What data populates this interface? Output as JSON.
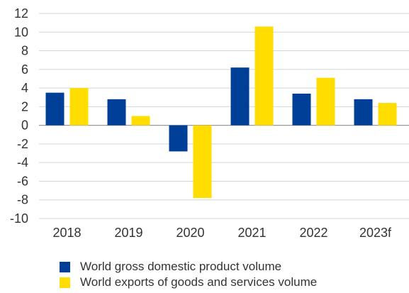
{
  "chart_data": {
    "type": "bar",
    "categories": [
      "2018",
      "2019",
      "2020",
      "2021",
      "2022",
      "2023f"
    ],
    "series": [
      {
        "name": "World gross domestic product volume",
        "values": [
          3.5,
          2.8,
          -2.8,
          6.2,
          3.4,
          2.8
        ],
        "color": "#003f98"
      },
      {
        "name": "World exports of goods and services volume",
        "values": [
          4.0,
          1.0,
          -7.8,
          10.6,
          5.1,
          2.4
        ],
        "color": "#ffdd00"
      }
    ],
    "y_ticks": [
      "12",
      "10",
      "8",
      "6",
      "4",
      "2",
      "0",
      "-2",
      "-4",
      "-6",
      "-8",
      "-10"
    ],
    "ylim": [
      -10,
      12
    ],
    "grid": "horizontal",
    "legend_position": "bottom-left",
    "title": "",
    "xlabel": "",
    "ylabel": ""
  }
}
